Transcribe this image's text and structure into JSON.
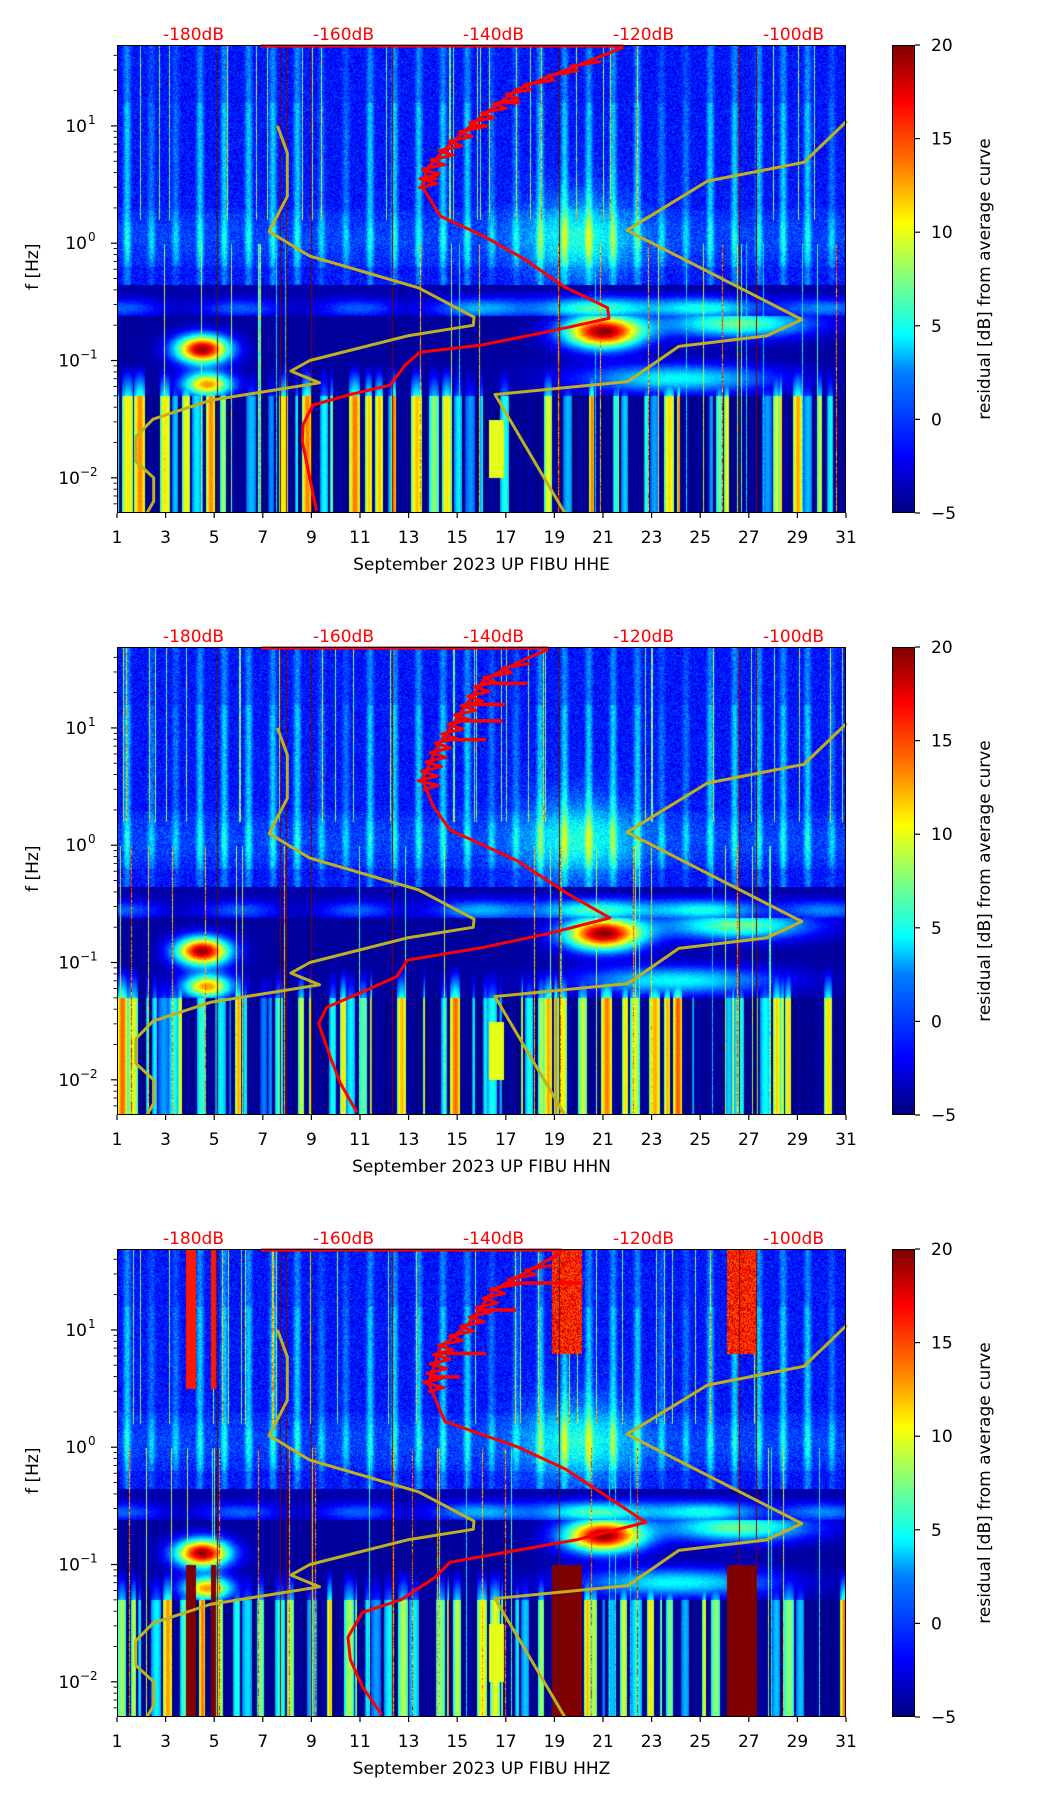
{
  "figure": {
    "colorbar": {
      "label": "residual [dB] from average curve",
      "ticks": [
        "20",
        "15",
        "10",
        "5",
        "0",
        "−5"
      ],
      "range": [
        -5,
        20
      ],
      "colormap": "jet"
    },
    "ylabel": "f [Hz]",
    "y_ticks": [
      {
        "base": "10",
        "exp": "1"
      },
      {
        "base": "10",
        "exp": "0"
      },
      {
        "base": "10",
        "exp": "−1"
      },
      {
        "base": "10",
        "exp": "−2"
      }
    ],
    "x_ticks": [
      "1",
      "3",
      "5",
      "7",
      "9",
      "11",
      "13",
      "15",
      "17",
      "19",
      "21",
      "23",
      "25",
      "27",
      "29",
      "31"
    ],
    "top_ticks": [
      "-180dB",
      "-160dB",
      "-140dB",
      "-120dB",
      "-100dB"
    ],
    "colors": {
      "average_curve": "#ff0000",
      "noise_model_curve": "#bfb020",
      "top_axis_text": "#ff0000"
    }
  },
  "panels": [
    {
      "xlabel": "September 2023 UP FIBU  HHE",
      "channel": "HHE"
    },
    {
      "xlabel": "September 2023 UP FIBU  HHN",
      "channel": "HHN"
    },
    {
      "xlabel": "September 2023 UP FIBU  HHZ",
      "channel": "HHZ"
    }
  ],
  "chart_data": {
    "type": "heatmap",
    "title": "",
    "xlabel": "September 2023 UP FIBU",
    "ylabel": "f [Hz]",
    "x_range_days": [
      1,
      31
    ],
    "x_ticks": [
      1,
      3,
      5,
      7,
      9,
      11,
      13,
      15,
      17,
      19,
      21,
      23,
      25,
      27,
      29,
      31
    ],
    "y_scale": "log",
    "y_range_hz": [
      0.005,
      49
    ],
    "top_axis": {
      "label_unit": "dB",
      "ticks_db": [
        -180,
        -160,
        -140,
        -120,
        -100
      ],
      "tick_days": [
        4.15,
        10.32,
        16.5,
        22.67,
        28.84
      ]
    },
    "colorbar_range_db": [
      -5,
      20
    ],
    "colorbar_ticks": [
      -5,
      0,
      5,
      10,
      15,
      20
    ],
    "noise_model_low": {
      "name": "low noise model",
      "points_db_log10f": [
        [
          -168.8,
          1.0
        ],
        [
          -167.5,
          0.77
        ],
        [
          -167.5,
          0.4
        ],
        [
          -169.9,
          0.1
        ],
        [
          -164.5,
          -0.11
        ],
        [
          -150.0,
          -0.38
        ],
        [
          -142.6,
          -0.63
        ],
        [
          -142.7,
          -0.7
        ],
        [
          -151.5,
          -0.79
        ],
        [
          -164.5,
          -1.0
        ],
        [
          -167.0,
          -1.09
        ],
        [
          -163.2,
          -1.19
        ],
        [
          -177.8,
          -1.34
        ],
        [
          -185.4,
          -1.5
        ],
        [
          -187.7,
          -1.65
        ],
        [
          -187.7,
          -1.86
        ],
        [
          -185.3,
          -2.0
        ],
        [
          -185.3,
          -2.2
        ],
        [
          -186.2,
          -2.3
        ]
      ]
    },
    "noise_model_high": {
      "name": "high noise model",
      "points_db_log10f": [
        [
          -92.9,
          1.04
        ],
        [
          -98.6,
          0.69
        ],
        [
          -111.5,
          0.53
        ],
        [
          -122.2,
          0.11
        ],
        [
          -98.9,
          -0.65
        ],
        [
          -103.6,
          -0.79
        ],
        [
          -115.3,
          -0.88
        ],
        [
          -122.1,
          -1.18
        ],
        [
          -139.8,
          -1.29
        ],
        [
          -130.5,
          -2.3
        ]
      ]
    },
    "series": [
      {
        "name": "HHE average curve",
        "points_db_log10f": [
          [
            -122.7,
            1.67
          ],
          [
            -130.2,
            1.48
          ],
          [
            -136.9,
            1.31
          ],
          [
            -142.2,
            1.05
          ],
          [
            -146.2,
            0.82
          ],
          [
            -148.9,
            0.63
          ],
          [
            -149.5,
            0.48
          ],
          [
            -148.4,
            0.37
          ],
          [
            -147.1,
            0.23
          ],
          [
            -141.3,
            0.06
          ],
          [
            -136.0,
            -0.13
          ],
          [
            -130.6,
            -0.37
          ],
          [
            -124.8,
            -0.55
          ],
          [
            -124.6,
            -0.64
          ],
          [
            -132.4,
            -0.75
          ],
          [
            -141.8,
            -0.87
          ],
          [
            -149.8,
            -0.93
          ],
          [
            -151.8,
            -1.04
          ],
          [
            -153.8,
            -1.21
          ],
          [
            -159.1,
            -1.29
          ],
          [
            -164.1,
            -1.38
          ],
          [
            -165.4,
            -1.55
          ],
          [
            -165.5,
            -1.69
          ],
          [
            -164.7,
            -1.94
          ],
          [
            -163.6,
            -2.28
          ]
        ],
        "spikes_db_log10f": [
          [
            -130.0,
            1.45
          ],
          [
            -136.5,
            1.2
          ],
          [
            -140.8,
            1.0
          ],
          [
            -147.5,
            0.55
          ]
        ]
      },
      {
        "name": "HHN average curve",
        "points_db_log10f": [
          [
            -132.7,
            1.67
          ],
          [
            -136.0,
            1.58
          ],
          [
            -141.3,
            1.41
          ],
          [
            -144.8,
            1.09
          ],
          [
            -147.5,
            0.84
          ],
          [
            -149.5,
            0.56
          ],
          [
            -148.0,
            0.33
          ],
          [
            -145.8,
            0.13
          ],
          [
            -136.9,
            -0.13
          ],
          [
            -130.2,
            -0.41
          ],
          [
            -124.5,
            -0.62
          ],
          [
            -132.5,
            -0.75
          ],
          [
            -141.3,
            -0.87
          ],
          [
            -151.5,
            -0.98
          ],
          [
            -152.9,
            -1.12
          ],
          [
            -157.8,
            -1.26
          ],
          [
            -162.2,
            -1.38
          ],
          [
            -163.3,
            -1.52
          ],
          [
            -161.8,
            -1.8
          ],
          [
            -160.4,
            -2.03
          ],
          [
            -158.2,
            -2.28
          ]
        ],
        "spikes_db_log10f": [
          [
            -135.5,
            1.38
          ],
          [
            -138.5,
            1.2
          ],
          [
            -138.8,
            1.06
          ],
          [
            -141.0,
            0.9
          ]
        ]
      },
      {
        "name": "HHZ average curve",
        "points_db_log10f": [
          [
            -130.9,
            1.66
          ],
          [
            -136.0,
            1.48
          ],
          [
            -140.0,
            1.34
          ],
          [
            -143.2,
            1.06
          ],
          [
            -147.1,
            0.85
          ],
          [
            -148.7,
            0.55
          ],
          [
            -146.5,
            0.22
          ],
          [
            -136.7,
            0.0
          ],
          [
            -130.3,
            -0.19
          ],
          [
            -119.7,
            -0.64
          ],
          [
            -129.0,
            -0.79
          ],
          [
            -145.8,
            -0.98
          ],
          [
            -147.8,
            -1.11
          ],
          [
            -152.3,
            -1.3
          ],
          [
            -157.5,
            -1.41
          ],
          [
            -159.4,
            -1.62
          ],
          [
            -159.1,
            -1.81
          ],
          [
            -157.5,
            -2.04
          ],
          [
            -154.9,
            -2.28
          ]
        ],
        "spikes_db_log10f": [
          [
            -128.0,
            1.4
          ],
          [
            -137.0,
            1.17
          ],
          [
            -141.0,
            0.8
          ],
          [
            -144.5,
            0.6
          ]
        ]
      }
    ]
  }
}
